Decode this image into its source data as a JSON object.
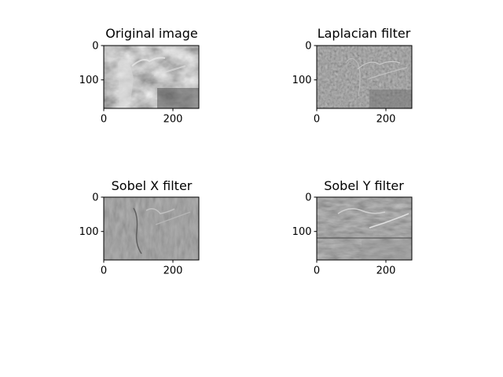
{
  "figure": {
    "background": "#ffffff",
    "panels": [
      {
        "title": "Original image",
        "image_kind": "grayscale-photo",
        "x_ticks": [
          "0",
          "200"
        ],
        "y_ticks": [
          "0",
          "100"
        ]
      },
      {
        "title": "Laplacian filter",
        "image_kind": "edge-map-laplacian",
        "x_ticks": [
          "0",
          "200"
        ],
        "y_ticks": [
          "0",
          "100"
        ]
      },
      {
        "title": "Sobel X filter",
        "image_kind": "edge-map-sobel-x",
        "x_ticks": [
          "0",
          "200"
        ],
        "y_ticks": [
          "0",
          "100"
        ]
      },
      {
        "title": "Sobel Y filter",
        "image_kind": "edge-map-sobel-y",
        "x_ticks": [
          "0",
          "200"
        ],
        "y_ticks": [
          "0",
          "100"
        ]
      }
    ]
  },
  "chart_data": [
    {
      "type": "heatmap",
      "title": "Original image",
      "colormap": "gray",
      "x_range": [
        0,
        275
      ],
      "y_range": [
        0,
        183
      ],
      "y_inverted": true,
      "x_ticks": [
        0,
        200
      ],
      "y_ticks": [
        0,
        100
      ]
    },
    {
      "type": "heatmap",
      "title": "Laplacian filter",
      "colormap": "gray",
      "x_range": [
        0,
        275
      ],
      "y_range": [
        0,
        183
      ],
      "y_inverted": true,
      "x_ticks": [
        0,
        200
      ],
      "y_ticks": [
        0,
        100
      ]
    },
    {
      "type": "heatmap",
      "title": "Sobel X filter",
      "colormap": "gray",
      "x_range": [
        0,
        275
      ],
      "y_range": [
        0,
        183
      ],
      "y_inverted": true,
      "x_ticks": [
        0,
        200
      ],
      "y_ticks": [
        0,
        100
      ]
    },
    {
      "type": "heatmap",
      "title": "Sobel Y filter",
      "colormap": "gray",
      "x_range": [
        0,
        275
      ],
      "y_range": [
        0,
        183
      ],
      "y_inverted": true,
      "x_ticks": [
        0,
        200
      ],
      "y_ticks": [
        0,
        100
      ]
    }
  ]
}
